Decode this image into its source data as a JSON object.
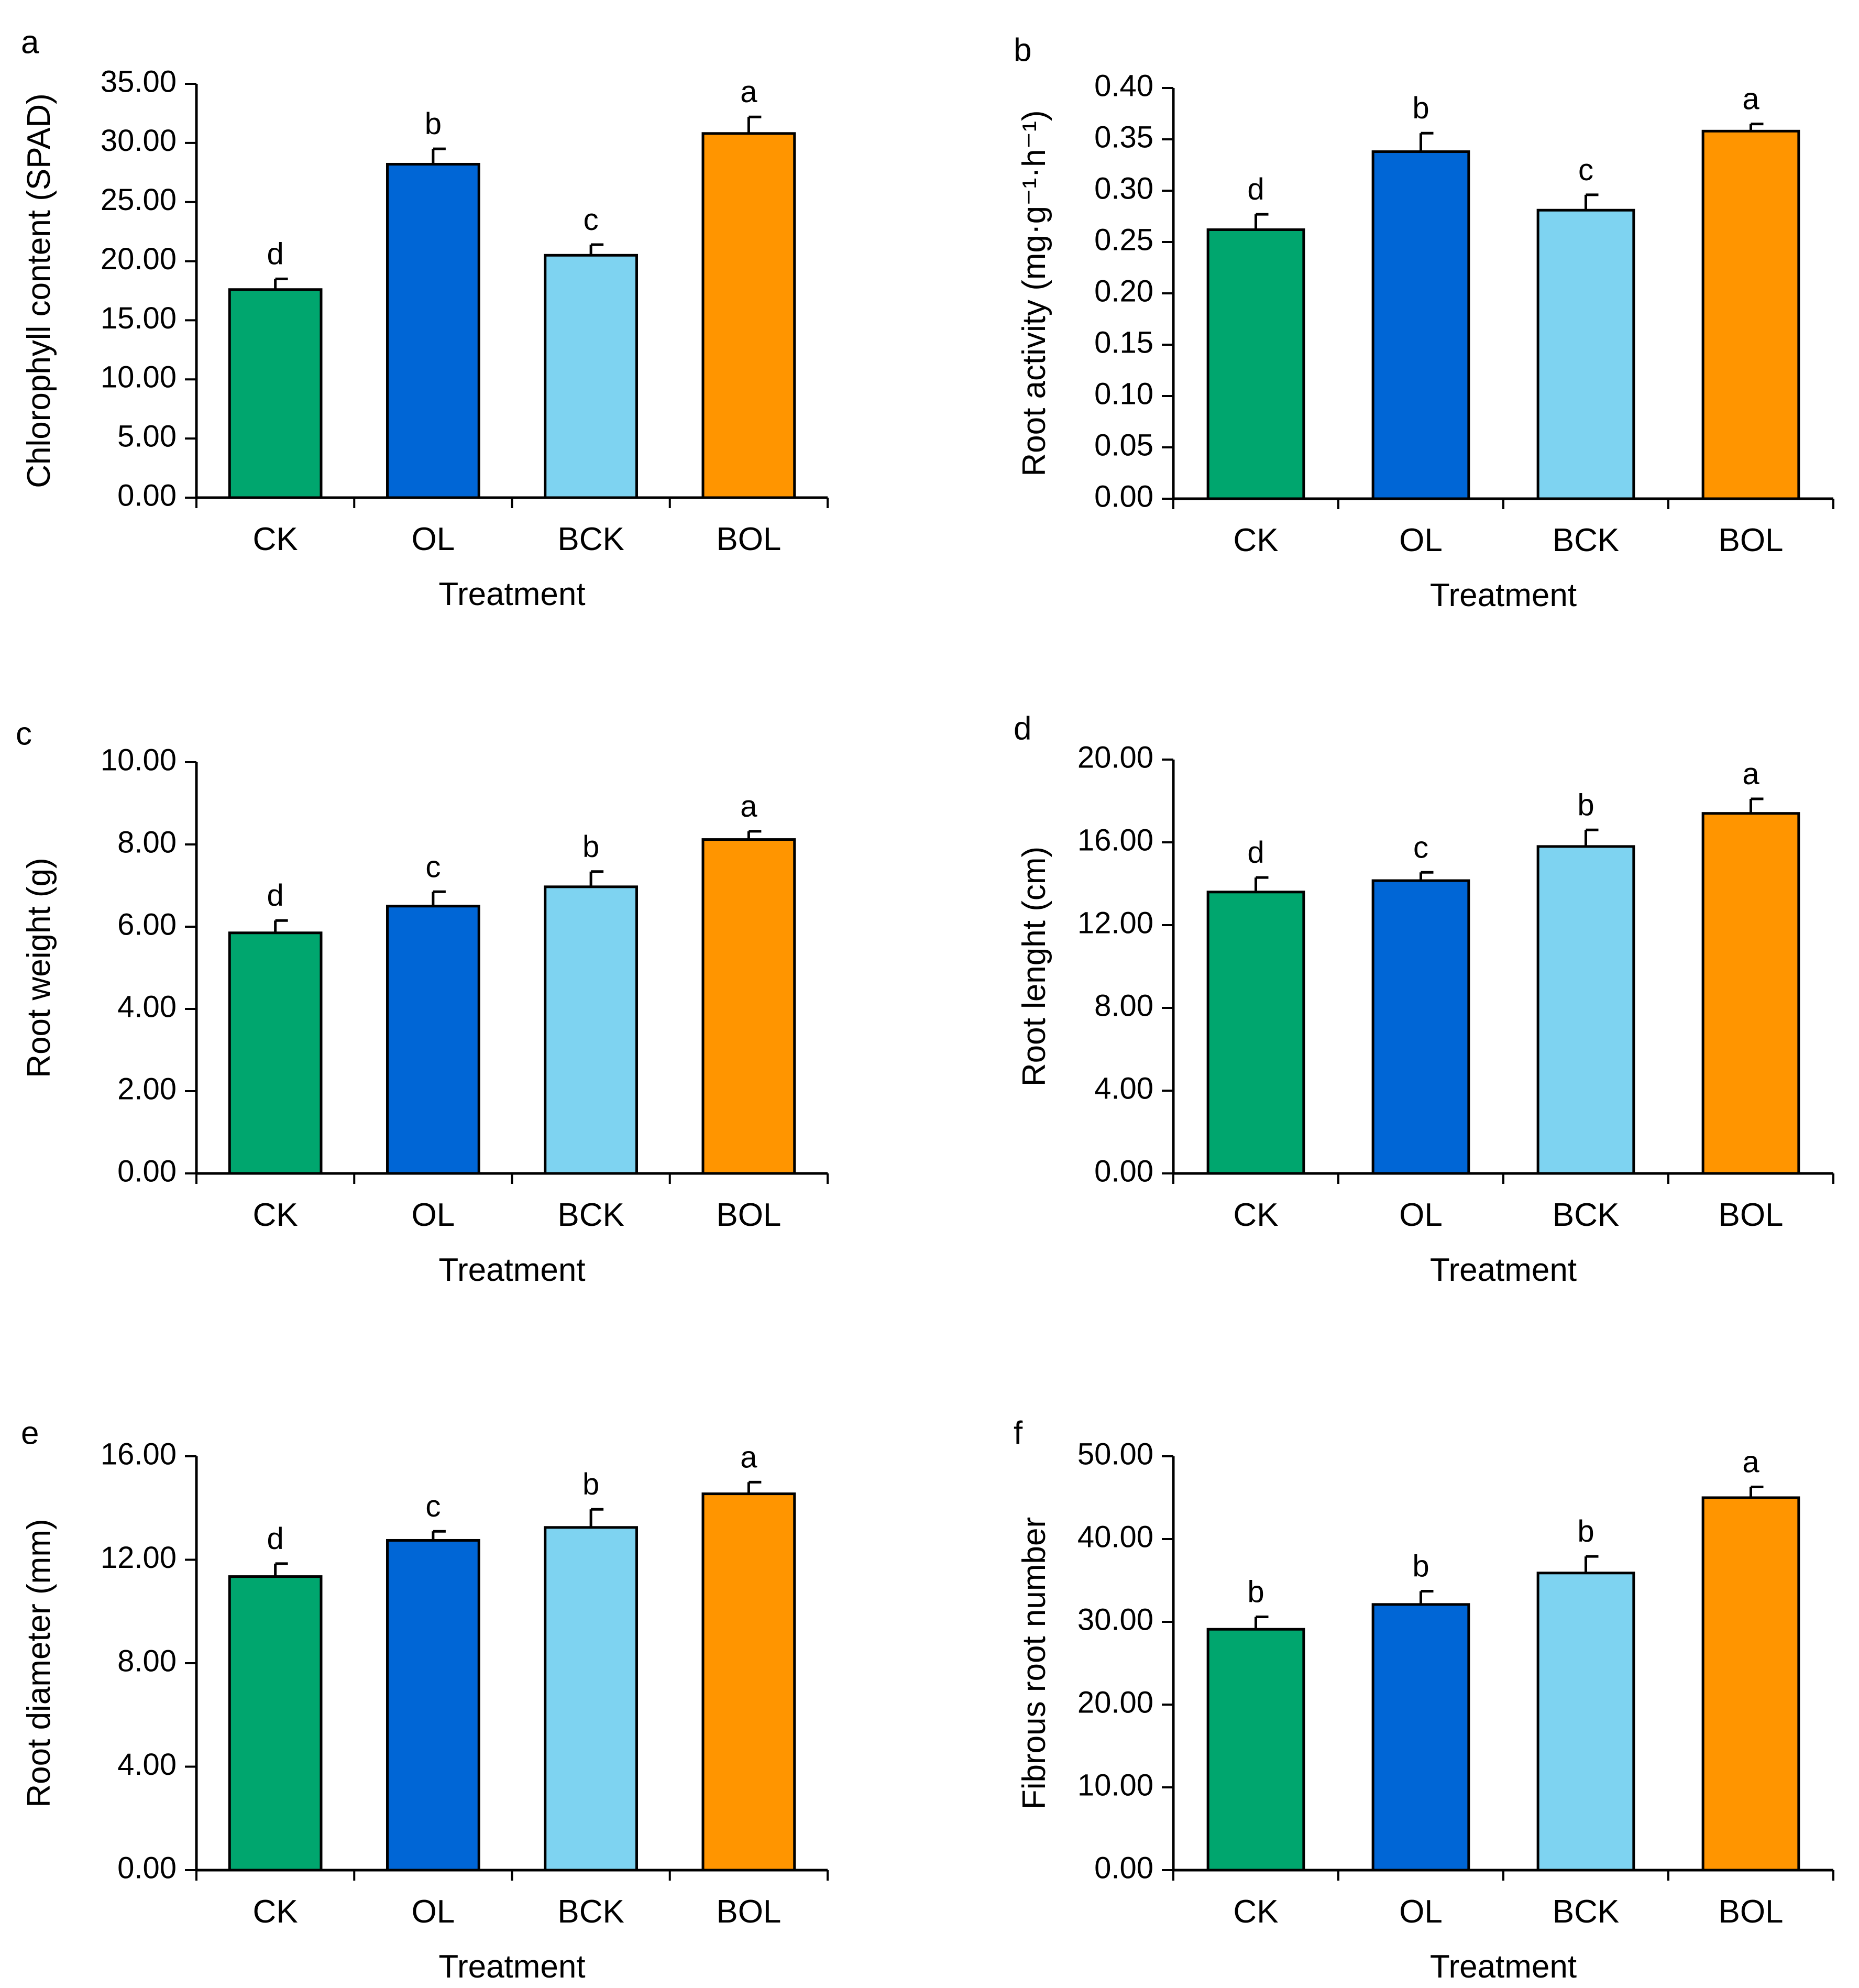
{
  "colors": {
    "CK": "#00a66e",
    "OL": "#0066d6",
    "BCK": "#7ed3f1",
    "BOL": "#ff9500",
    "axis": "#000000",
    "background": "#ffffff"
  },
  "chart_data": [
    {
      "panel": "a",
      "type": "bar",
      "title": "",
      "xlabel": "Treatment",
      "ylabel": "Chlorophyll content (SPAD)",
      "categories": [
        "CK",
        "OL",
        "BCK",
        "BOL"
      ],
      "values": [
        17.6,
        28.2,
        20.5,
        30.8
      ],
      "errors": [
        0.9,
        1.3,
        0.9,
        1.4
      ],
      "significance": [
        "d",
        "b",
        "c",
        "a"
      ],
      "ylim": [
        0,
        35
      ],
      "yticks": [
        0,
        5,
        10,
        15,
        20,
        25,
        30,
        35
      ],
      "ytick_labels": [
        "0.00",
        "5.00",
        "10.00",
        "15.00",
        "20.00",
        "25.00",
        "30.00",
        "35.00"
      ]
    },
    {
      "panel": "b",
      "type": "bar",
      "title": "",
      "xlabel": "Treatment",
      "ylabel": "Root activity (mg·g⁻¹·h⁻¹)",
      "categories": [
        "CK",
        "OL",
        "BCK",
        "BOL"
      ],
      "values": [
        0.262,
        0.338,
        0.281,
        0.358
      ],
      "errors": [
        0.015,
        0.018,
        0.015,
        0.007
      ],
      "significance": [
        "d",
        "b",
        "c",
        "a"
      ],
      "ylim": [
        0,
        0.4
      ],
      "yticks": [
        0,
        0.05,
        0.1,
        0.15,
        0.2,
        0.25,
        0.3,
        0.35,
        0.4
      ],
      "ytick_labels": [
        "0.00",
        "0.05",
        "0.10",
        "0.15",
        "0.20",
        "0.25",
        "0.30",
        "0.35",
        "0.40"
      ]
    },
    {
      "panel": "c",
      "type": "bar",
      "title": "",
      "xlabel": "Treatment",
      "ylabel": "Root weight (g)",
      "categories": [
        "CK",
        "OL",
        "BCK",
        "BOL"
      ],
      "values": [
        5.85,
        6.5,
        6.97,
        8.12
      ],
      "errors": [
        0.3,
        0.35,
        0.37,
        0.2
      ],
      "significance": [
        "d",
        "c",
        "b",
        "a"
      ],
      "ylim": [
        0,
        10
      ],
      "yticks": [
        0,
        2,
        4,
        6,
        8,
        10
      ],
      "ytick_labels": [
        "0.00",
        "2.00",
        "4.00",
        "6.00",
        "8.00",
        "10.00"
      ]
    },
    {
      "panel": "d",
      "type": "bar",
      "title": "",
      "xlabel": "Treatment",
      "ylabel": "Root lenght (cm)",
      "categories": [
        "CK",
        "OL",
        "BCK",
        "BOL"
      ],
      "values": [
        13.6,
        14.15,
        15.8,
        17.4
      ],
      "errors": [
        0.7,
        0.4,
        0.8,
        0.7
      ],
      "significance": [
        "d",
        "c",
        "b",
        "a"
      ],
      "ylim": [
        0,
        20
      ],
      "yticks": [
        0,
        4,
        8,
        12,
        16,
        20
      ],
      "ytick_labels": [
        "0.00",
        "4.00",
        "8.00",
        "12.00",
        "16.00",
        "20.00"
      ]
    },
    {
      "panel": "e",
      "type": "bar",
      "title": "",
      "xlabel": "Treatment",
      "ylabel": "Root diameter (mm)",
      "categories": [
        "CK",
        "OL",
        "BCK",
        "BOL"
      ],
      "values": [
        11.35,
        12.75,
        13.25,
        14.55
      ],
      "errors": [
        0.5,
        0.35,
        0.7,
        0.45
      ],
      "significance": [
        "d",
        "c",
        "b",
        "a"
      ],
      "ylim": [
        0,
        16
      ],
      "yticks": [
        0,
        4,
        8,
        12,
        16
      ],
      "ytick_labels": [
        "0.00",
        "4.00",
        "8.00",
        "12.00",
        "16.00"
      ]
    },
    {
      "panel": "f",
      "type": "bar",
      "title": "",
      "xlabel": "Treatment",
      "ylabel": "Fibrous root number",
      "categories": [
        "CK",
        "OL",
        "BCK",
        "BOL"
      ],
      "values": [
        29.1,
        32.1,
        35.9,
        45.0
      ],
      "errors": [
        1.5,
        1.6,
        2.0,
        1.3
      ],
      "significance": [
        "b",
        "b",
        "b",
        "a"
      ],
      "ylim": [
        0,
        50
      ],
      "yticks": [
        0,
        10,
        20,
        30,
        40,
        50
      ],
      "ytick_labels": [
        "0.00",
        "10.00",
        "20.00",
        "30.00",
        "40.00",
        "50.00"
      ]
    }
  ]
}
